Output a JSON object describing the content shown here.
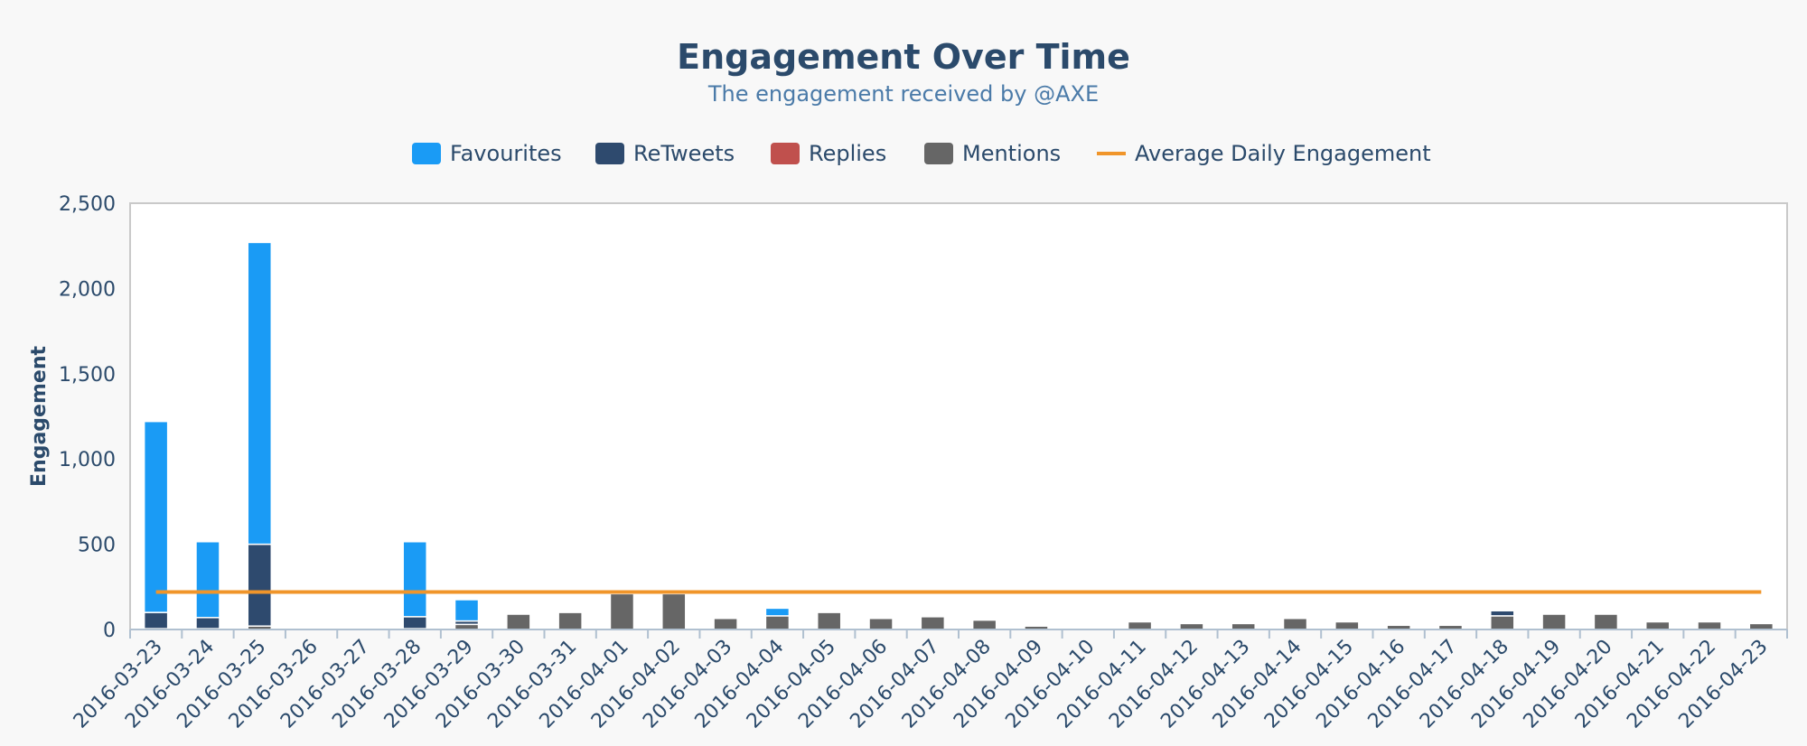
{
  "title": "Engagement Over Time",
  "subtitle": "The engagement received by @AXE",
  "colors": {
    "favourites": "#1a9bf5",
    "retweets": "#2e4a6e",
    "replies": "#c0504d",
    "mentions": "#666666",
    "average": "#f0952a",
    "title": "#2b4a6b",
    "subtitle": "#4a7aa8",
    "axis_text": "#2b4a6b"
  },
  "chart_data": {
    "type": "bar",
    "stacked": true,
    "title": "Engagement Over Time",
    "subtitle": "The engagement received by @AXE",
    "ylabel": "Engagement",
    "xlabel": "",
    "ylim": [
      0,
      2500
    ],
    "yticks": [
      0,
      500,
      1000,
      1500,
      2000,
      2500
    ],
    "ytick_labels": [
      "0",
      "500",
      "1,000",
      "1,500",
      "2,000",
      "2,500"
    ],
    "legend_position": "top-center",
    "categories": [
      "2016-03-23",
      "2016-03-24",
      "2016-03-25",
      "2016-03-26",
      "2016-03-27",
      "2016-03-28",
      "2016-03-29",
      "2016-03-30",
      "2016-03-31",
      "2016-04-01",
      "2016-04-02",
      "2016-04-03",
      "2016-04-04",
      "2016-04-05",
      "2016-04-06",
      "2016-04-07",
      "2016-04-08",
      "2016-04-09",
      "2016-04-10",
      "2016-04-11",
      "2016-04-12",
      "2016-04-13",
      "2016-04-14",
      "2016-04-15",
      "2016-04-16",
      "2016-04-17",
      "2016-04-18",
      "2016-04-19",
      "2016-04-20",
      "2016-04-21",
      "2016-04-22",
      "2016-04-23"
    ],
    "series": [
      {
        "name": "Favourites",
        "color": "#1a9bf5",
        "values": [
          1120,
          445,
          1770,
          0,
          0,
          440,
          125,
          0,
          0,
          0,
          0,
          0,
          45,
          0,
          0,
          0,
          0,
          0,
          0,
          0,
          0,
          0,
          0,
          0,
          0,
          0,
          0,
          0,
          0,
          0,
          0,
          0
        ]
      },
      {
        "name": "ReTweets",
        "color": "#2e4a6e",
        "values": [
          95,
          65,
          480,
          0,
          0,
          70,
          20,
          0,
          0,
          0,
          0,
          0,
          0,
          0,
          0,
          0,
          0,
          0,
          0,
          0,
          0,
          0,
          0,
          0,
          0,
          0,
          30,
          0,
          0,
          0,
          0,
          0
        ]
      },
      {
        "name": "Replies",
        "color": "#c0504d",
        "values": [
          0,
          0,
          0,
          0,
          0,
          0,
          0,
          0,
          0,
          0,
          0,
          0,
          0,
          0,
          0,
          0,
          0,
          0,
          0,
          0,
          0,
          0,
          0,
          0,
          0,
          0,
          0,
          0,
          0,
          0,
          0,
          0
        ]
      },
      {
        "name": "Mentions",
        "color": "#666666",
        "values": [
          5,
          5,
          20,
          0,
          0,
          5,
          30,
          90,
          100,
          210,
          210,
          65,
          80,
          100,
          65,
          75,
          55,
          20,
          0,
          45,
          35,
          35,
          65,
          45,
          25,
          25,
          80,
          90,
          90,
          45,
          45,
          35
        ]
      }
    ],
    "average": {
      "name": "Average Daily Engagement",
      "value": 220,
      "color": "#f0952a"
    }
  }
}
